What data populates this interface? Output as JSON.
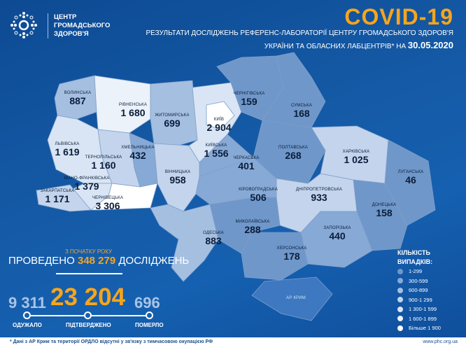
{
  "header": {
    "org_lines": [
      "ЦЕНТР",
      "ГРОМАДСЬКОГО",
      "ЗДОРОВ'Я"
    ],
    "title": "COVID-19",
    "subtitle_line1": "РЕЗУЛЬТАТИ ДОСЛІДЖЕНЬ РЕФЕРЕНС-ЛАБОРАТОРІЇ ЦЕНТРУ ГРОМАДСЬКОГО ЗДОРОВ'Я",
    "subtitle_line2": "УКРАЇНИ ТА ОБЛАСНИХ ЛАБЦЕНТРІВ* НА",
    "date": "30.05.2020"
  },
  "colors": {
    "background": "#1560b0",
    "accent": "#f7a51c",
    "b1": "#6f97c9",
    "b2": "#87a9d5",
    "b3": "#a5bfe1",
    "b4": "#c3d4ec",
    "b5": "#d9e5f4",
    "b6": "#ecf2fa",
    "b7": "#ffffff"
  },
  "regions": [
    {
      "name": "ВОЛИНСЬКА",
      "value": "887"
    },
    {
      "name": "РІВНЕНСЬКА",
      "value": "1 680"
    },
    {
      "name": "ЖИТОМИРСЬКА",
      "value": "699"
    },
    {
      "name": "КИЇВ",
      "value": "2 904"
    },
    {
      "name": "КИЇВСЬКА",
      "value": "1 556"
    },
    {
      "name": "ЧЕРНІГІВСЬКА",
      "value": "159"
    },
    {
      "name": "СУМСЬКА",
      "value": "168"
    },
    {
      "name": "ПОЛТАВСЬКА",
      "value": "268"
    },
    {
      "name": "ХАРКІВСЬКА",
      "value": "1 025"
    },
    {
      "name": "ЛУГАНСЬКА",
      "value": "46"
    },
    {
      "name": "ДОНЕЦЬКА",
      "value": "158"
    },
    {
      "name": "ЗАПОРІЗЬКА",
      "value": "440"
    },
    {
      "name": "ДНІПРОПЕТРОВСЬКА",
      "value": "933"
    },
    {
      "name": "ХЕРСОНСЬКА",
      "value": "178"
    },
    {
      "name": "АР КРИМ",
      "value": ""
    },
    {
      "name": "МИКОЛАЇВСЬКА",
      "value": "288"
    },
    {
      "name": "КІРОВОГРАДСЬКА",
      "value": "506"
    },
    {
      "name": "ЧЕРКАСЬКА",
      "value": "401"
    },
    {
      "name": "ВІННИЦЬКА",
      "value": "958"
    },
    {
      "name": "ОДЕСЬКА",
      "value": "883"
    },
    {
      "name": "ХМЕЛЬНИЦЬКА",
      "value": "432"
    },
    {
      "name": "ТЕРНОПІЛЬСЬКА",
      "value": "1 160"
    },
    {
      "name": "ЛЬВІВСЬКА",
      "value": "1 619"
    },
    {
      "name": "ІВАНО-ФРАНКІВСЬКА",
      "value": "1 379"
    },
    {
      "name": "ЧЕРНІВЕЦЬКА",
      "value": "3 306"
    },
    {
      "name": "ЗАКАРПАТСЬКА",
      "value": "1 171"
    }
  ],
  "summary": {
    "since": "З ПОЧАТКУ РОКУ",
    "tests_prefix": "ПРОВЕДЕНО",
    "tests": "348 279",
    "tests_suffix": "ДОСЛІДЖЕНЬ",
    "recovered": "9 311",
    "confirmed": "23 204",
    "deaths": "696",
    "recovered_label": "ОДУЖАЛО",
    "confirmed_label": "ПІДТВЕРДЖЕНО",
    "deaths_label": "ПОМЕРЛО"
  },
  "legend": {
    "title1": "КІЛЬКІСТЬ",
    "title2": "ВИПАДКІВ:",
    "items": [
      "1-299",
      "300-599",
      "600-899",
      "900-1 299",
      "1 300-1 599",
      "1 600-1 899",
      "Більше 1 900"
    ]
  },
  "footer": {
    "note": "* Дані з АР Крим та території ОРДЛО відсутні у зв'язку з тимчасовою окупацією РФ",
    "url": "www.phc.org.ua"
  }
}
